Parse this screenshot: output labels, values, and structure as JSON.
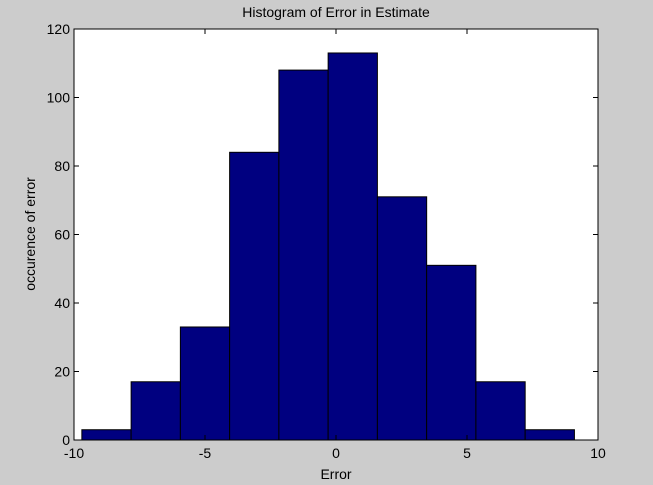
{
  "chart_data": {
    "type": "bar",
    "title": "Histogram of Error in Estimate",
    "xlabel": "Error",
    "ylabel": "occurence of error",
    "xlim": [
      -10,
      10
    ],
    "ylim": [
      0,
      120
    ],
    "xticks": [
      -10,
      -5,
      0,
      5,
      10
    ],
    "yticks": [
      0,
      20,
      40,
      60,
      80,
      100,
      120
    ],
    "bin_edges": [
      -9.7,
      -7.82,
      -5.94,
      -4.06,
      -2.18,
      -0.3,
      1.58,
      3.46,
      5.34,
      7.22,
      9.1
    ],
    "values": [
      3,
      17,
      33,
      84,
      108,
      113,
      71,
      51,
      17,
      3
    ],
    "bar_color": "#000080",
    "grid": false
  }
}
